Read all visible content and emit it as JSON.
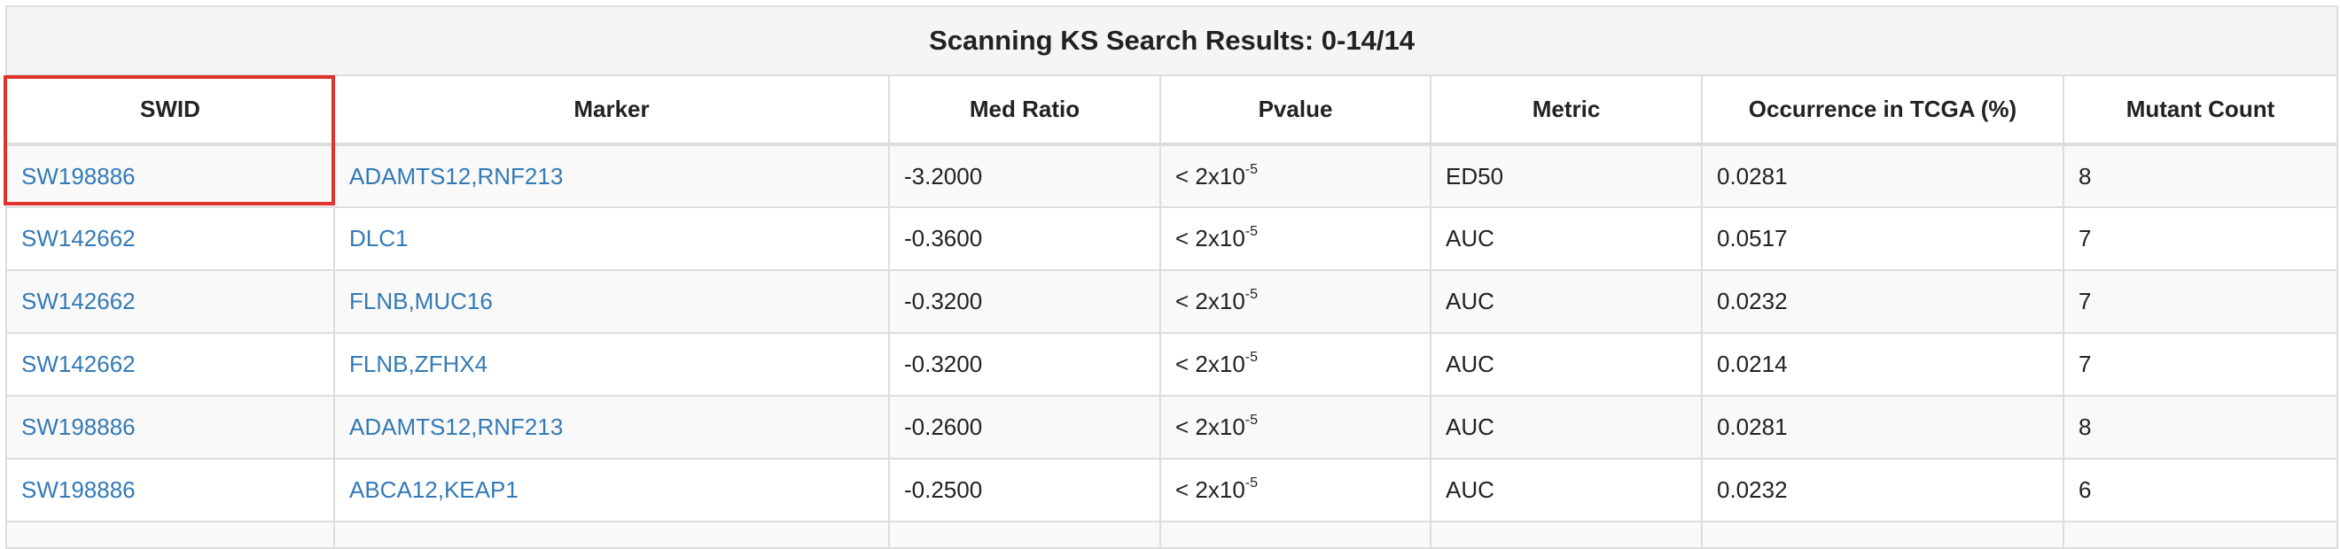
{
  "table": {
    "caption": "Scanning KS Search Results: 0-14/14",
    "headers": [
      "SWID",
      "Marker",
      "Med Ratio",
      "Pvalue",
      "Metric",
      "Occurrence in TCGA (%)",
      "Mutant Count"
    ],
    "rows": [
      {
        "swid": "SW198886",
        "marker": "ADAMTS12,RNF213",
        "med_ratio": "-3.2000",
        "pvalue": "< 2x10",
        "pvalue_exp": "-5",
        "metric": "ED50",
        "occurrence": "0.0281",
        "mutant_count": "8"
      },
      {
        "swid": "SW142662",
        "marker": "DLC1",
        "med_ratio": "-0.3600",
        "pvalue": "< 2x10",
        "pvalue_exp": "-5",
        "metric": "AUC",
        "occurrence": "0.0517",
        "mutant_count": "7"
      },
      {
        "swid": "SW142662",
        "marker": "FLNB,MUC16",
        "med_ratio": "-0.3200",
        "pvalue": "< 2x10",
        "pvalue_exp": "-5",
        "metric": "AUC",
        "occurrence": "0.0232",
        "mutant_count": "7"
      },
      {
        "swid": "SW142662",
        "marker": "FLNB,ZFHX4",
        "med_ratio": "-0.3200",
        "pvalue": "< 2x10",
        "pvalue_exp": "-5",
        "metric": "AUC",
        "occurrence": "0.0214",
        "mutant_count": "7"
      },
      {
        "swid": "SW198886",
        "marker": "ADAMTS12,RNF213",
        "med_ratio": "-0.2600",
        "pvalue": "< 2x10",
        "pvalue_exp": "-5",
        "metric": "AUC",
        "occurrence": "0.0281",
        "mutant_count": "8"
      },
      {
        "swid": "SW198886",
        "marker": "ABCA12,KEAP1",
        "med_ratio": "-0.2500",
        "pvalue": "< 2x10",
        "pvalue_exp": "-5",
        "metric": "AUC",
        "occurrence": "0.0232",
        "mutant_count": "6"
      }
    ]
  },
  "colors": {
    "link": "#337ab7",
    "highlight_border": "#e0332c",
    "grid_border": "#dddddd",
    "stripe": "#f9f9f9"
  }
}
